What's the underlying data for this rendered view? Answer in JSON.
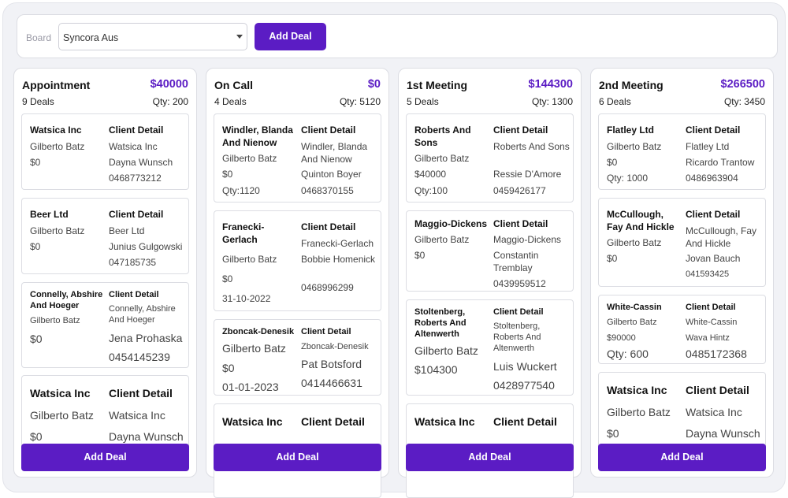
{
  "toolbar": {
    "board_label": "Board",
    "board_value": "Syncora Aus",
    "add_deal_label": "Add Deal"
  },
  "columns": [
    {
      "name": "Appointment",
      "amount": "$40000",
      "deals": "9 Deals",
      "qty": "Qty: 200",
      "add_label": "Add Deal",
      "cards": [
        {
          "company": "Watsica Inc",
          "owner": "Gilberto Batz",
          "value": "$0",
          "detail_label": "Client Detail",
          "client": "Watsica Inc",
          "contact": "Dayna Wunsch",
          "phone": "0468773212"
        },
        {
          "company": "Beer Ltd",
          "owner": "Gilberto Batz",
          "value": "$0",
          "detail_label": "Client Detail",
          "client": "Beer Ltd",
          "contact": "Junius Gulgowski",
          "phone": "047185735"
        },
        {
          "company": "Connelly, Abshire And Hoeger",
          "owner": "Gilberto Batz",
          "value": "$0",
          "detail_label": "Client Detail",
          "client": "Connelly, Abshire And Hoeger",
          "contact": "Jena Prohaska",
          "phone": "0454145239"
        },
        {
          "company": "Watsica Inc",
          "owner": "Gilberto Batz",
          "value": "$0",
          "detail_label": "Client Detail",
          "client": "Watsica Inc",
          "contact": "Dayna Wunsch"
        }
      ]
    },
    {
      "name": "On Call",
      "amount": "$0",
      "deals": "4 Deals",
      "qty": "Qty: 5120",
      "add_label": "Add Deal",
      "cards": [
        {
          "company": "Windler, Blanda And Nienow",
          "owner": "Gilberto Batz",
          "value": "$0",
          "qty": "Qty:1120",
          "detail_label": "Client Detail",
          "client": "Windler, Blanda And Nienow",
          "contact": "Quinton Boyer",
          "phone": "0468370155"
        },
        {
          "company": "Franecki-Gerlach",
          "owner": "Gilberto Batz",
          "value": "$0",
          "date": "31-10-2022",
          "detail_label": "Client Detail",
          "client": "Franecki-Gerlach",
          "contact": "Bobbie Homenick",
          "phone": "0468996299"
        },
        {
          "company": "Zboncak-Denesik",
          "owner": "Gilberto Batz",
          "value": "$0",
          "date": "01-01-2023",
          "detail_label": "Client Detail",
          "client": "Zboncak-Denesik",
          "contact": "Pat Botsford",
          "phone": "0414466631"
        },
        {
          "company": "Watsica Inc",
          "detail_label": "Client Detail"
        }
      ]
    },
    {
      "name": "1st Meeting",
      "amount": "$144300",
      "deals": "5 Deals",
      "qty": "Qty: 1300",
      "add_label": "Add Deal",
      "cards": [
        {
          "company": "Roberts And Sons",
          "owner": "Gilberto Batz",
          "value": "$40000",
          "qty": "Qty:100",
          "detail_label": "Client Detail",
          "client": "Roberts And Sons",
          "contact": "Ressie D'Amore",
          "phone": "0459426177"
        },
        {
          "company": "Maggio-Dickens",
          "owner": "Gilberto Batz",
          "value": "$0",
          "detail_label": "Client Detail",
          "client": "Maggio-Dickens",
          "contact": "Constantin Tremblay",
          "phone": "0439959512"
        },
        {
          "company": "Stoltenberg, Roberts And Altenwerth",
          "owner": "Gilberto Batz",
          "value": "$104300",
          "detail_label": "Client Detail",
          "client": "Stoltenberg, Roberts And Altenwerth",
          "contact": "Luis Wuckert",
          "phone": "0428977540"
        },
        {
          "company": "Watsica Inc",
          "detail_label": "Client Detail"
        }
      ]
    },
    {
      "name": "2nd Meeting",
      "amount": "$266500",
      "deals": "6 Deals",
      "qty": "Qty: 3450",
      "add_label": "Add Deal",
      "cards": [
        {
          "company": "Flatley Ltd",
          "owner": "Gilberto Batz",
          "value": "$0",
          "qty": "Qty: 1000",
          "detail_label": "Client Detail",
          "client": "Flatley Ltd",
          "contact": "Ricardo Trantow",
          "phone": "0486963904"
        },
        {
          "company": "McCullough, Fay And Hickle",
          "owner": "Gilberto Batz",
          "value": "$0",
          "detail_label": "Client Detail",
          "client": "McCullough, Fay And Hickle",
          "contact": "Jovan Bauch",
          "phone": "041593425"
        },
        {
          "company": "White-Cassin",
          "owner": "Gilberto Batz",
          "value": "$90000",
          "qty": "Qty: 600",
          "detail_label": "Client Detail",
          "client": "White-Cassin",
          "contact": "Wava Hintz",
          "phone": "0485172368"
        },
        {
          "company": "Watsica Inc",
          "owner": "Gilberto Batz",
          "value": "$0",
          "detail_label": "Client Detail",
          "client": "Watsica Inc",
          "contact": "Dayna Wunsch"
        }
      ]
    }
  ]
}
